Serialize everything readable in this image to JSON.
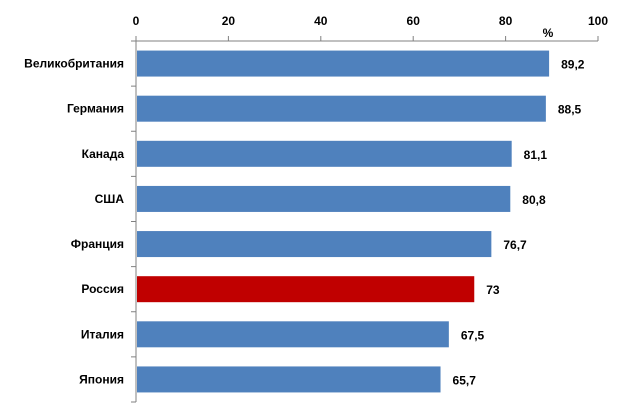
{
  "chart_data": {
    "type": "bar",
    "orientation": "horizontal",
    "categories": [
      "Великобритания",
      "Германия",
      "Канада",
      "США",
      "Франция",
      "Россия",
      "Италия",
      "Япония"
    ],
    "values": [
      89.2,
      88.5,
      81.1,
      80.8,
      76.7,
      73,
      67.5,
      65.7
    ],
    "value_labels": [
      "89,2",
      "88,5",
      "81,1",
      "80,8",
      "76,7",
      "73",
      "67,5",
      "65,7"
    ],
    "xlim": [
      0,
      100
    ],
    "x_ticks": [
      0,
      20,
      40,
      60,
      80,
      100
    ],
    "x_tick_labels": [
      "0",
      "20",
      "40",
      "60",
      "80",
      "100"
    ],
    "x_axis_position": "top",
    "unit_label": "%",
    "grid": false,
    "bar_color": "#4F81BD",
    "highlight": {
      "category": "Россия",
      "color": "#C00000"
    }
  }
}
